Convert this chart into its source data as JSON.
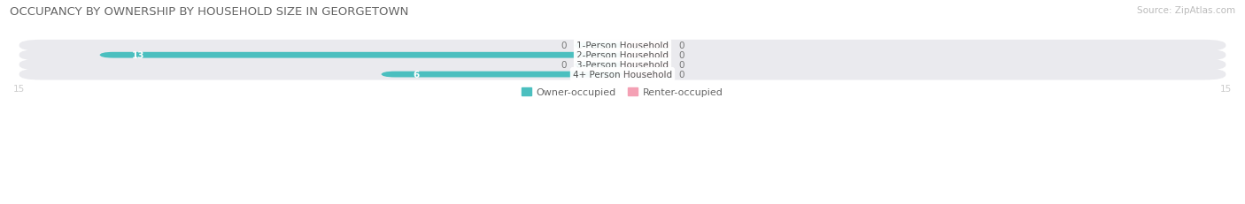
{
  "title": "OCCUPANCY BY OWNERSHIP BY HOUSEHOLD SIZE IN GEORGETOWN",
  "source": "Source: ZipAtlas.com",
  "categories": [
    "1-Person Household",
    "2-Person Household",
    "3-Person Household",
    "4+ Person Household"
  ],
  "owner_values": [
    0,
    13,
    0,
    6
  ],
  "renter_values": [
    0,
    0,
    0,
    0
  ],
  "owner_color": "#4BBFBF",
  "renter_color": "#F4A0B4",
  "bar_bg_color": "#EAEAEE",
  "xlim": [
    -15,
    15
  ],
  "title_fontsize": 9.5,
  "source_fontsize": 7.5,
  "label_fontsize": 7.5,
  "legend_fontsize": 8,
  "value_fontsize": 7.5,
  "bar_height": 0.62,
  "stub_size": 1.2,
  "background_color": "#FFFFFF"
}
